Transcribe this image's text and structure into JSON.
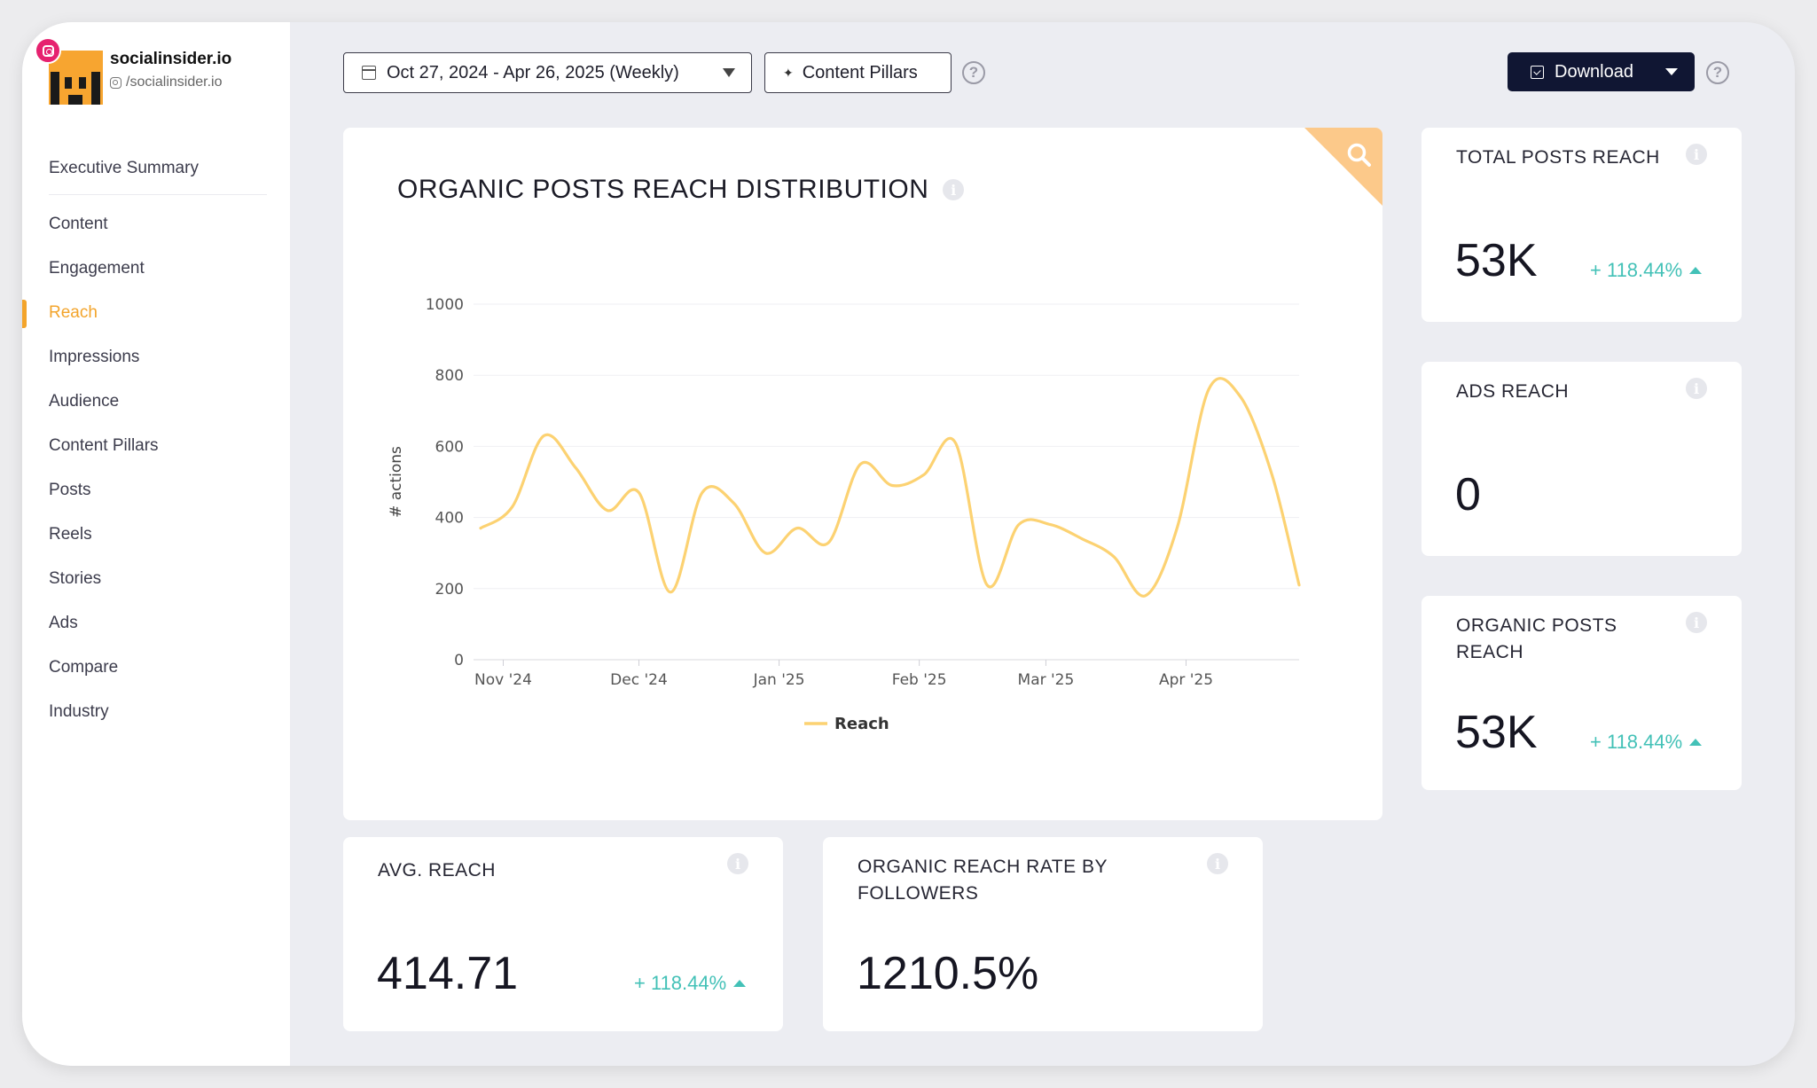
{
  "brand": {
    "name": "socialinsider.io",
    "handle": "/socialinsider.io"
  },
  "sidebar": {
    "items": [
      {
        "label": "Executive Summary"
      },
      {
        "label": "Content"
      },
      {
        "label": "Engagement"
      },
      {
        "label": "Reach",
        "active": true
      },
      {
        "label": "Impressions"
      },
      {
        "label": "Audience"
      },
      {
        "label": "Content Pillars"
      },
      {
        "label": "Posts"
      },
      {
        "label": "Reels"
      },
      {
        "label": "Stories"
      },
      {
        "label": "Ads"
      },
      {
        "label": "Compare"
      },
      {
        "label": "Industry"
      }
    ]
  },
  "toolbar": {
    "date_range": "Oct 27, 2024 - Apr 26, 2025 (Weekly)",
    "content_pillars": "Content Pillars",
    "download": "Download",
    "help_icon": "?"
  },
  "main_chart": {
    "title": "ORGANIC POSTS REACH DISTRIBUTION",
    "info_icon": "i"
  },
  "chart_data": {
    "type": "line",
    "title": "ORGANIC POSTS REACH DISTRIBUTION",
    "xlabel": "",
    "ylabel": "# actions",
    "ylim": [
      0,
      1000
    ],
    "yticks": [
      0,
      200,
      400,
      600,
      800,
      1000
    ],
    "xtick_labels": [
      "Nov '24",
      "Dec '24",
      "Jan '25",
      "Feb '25",
      "Mar '25",
      "Apr '25"
    ],
    "xticks_dates": [
      "2024-11-01",
      "2024-12-01",
      "2025-01-01",
      "2025-02-01",
      "2025-03-01",
      "2025-04-01"
    ],
    "xlim_dates": [
      "2024-10-27",
      "2025-04-26"
    ],
    "grid": true,
    "legend": "bottom-center",
    "color": "#fcd272",
    "series": [
      {
        "name": "Reach",
        "x": [
          "2024-10-27",
          "2024-11-03",
          "2024-11-10",
          "2024-11-17",
          "2024-11-24",
          "2024-12-01",
          "2024-12-08",
          "2024-12-15",
          "2024-12-22",
          "2024-12-29",
          "2025-01-05",
          "2025-01-12",
          "2025-01-19",
          "2025-01-26",
          "2025-02-02",
          "2025-02-09",
          "2025-02-16",
          "2025-02-23",
          "2025-03-02",
          "2025-03-09",
          "2025-03-16",
          "2025-03-23",
          "2025-03-30",
          "2025-04-06",
          "2025-04-13",
          "2025-04-20",
          "2025-04-26"
        ],
        "y": [
          370,
          430,
          630,
          540,
          420,
          470,
          190,
          470,
          440,
          300,
          370,
          330,
          550,
          490,
          520,
          610,
          210,
          380,
          380,
          340,
          290,
          180,
          370,
          760,
          740,
          520,
          210
        ]
      }
    ]
  },
  "kpis": {
    "total_posts_reach": {
      "label": "TOTAL POSTS REACH",
      "value": "53K",
      "delta": "+ 118.44%"
    },
    "ads_reach": {
      "label": "ADS REACH",
      "value": "0"
    },
    "organic_posts_reach": {
      "label": "ORGANIC POSTS REACH",
      "value": "53K",
      "delta": "+ 118.44%"
    },
    "avg_reach": {
      "label": "AVG. REACH",
      "value": "414.71",
      "delta": "+ 118.44%"
    },
    "organic_reach_rate": {
      "label": "ORGANIC REACH RATE BY FOLLOWERS",
      "value": "1210.5%"
    }
  }
}
